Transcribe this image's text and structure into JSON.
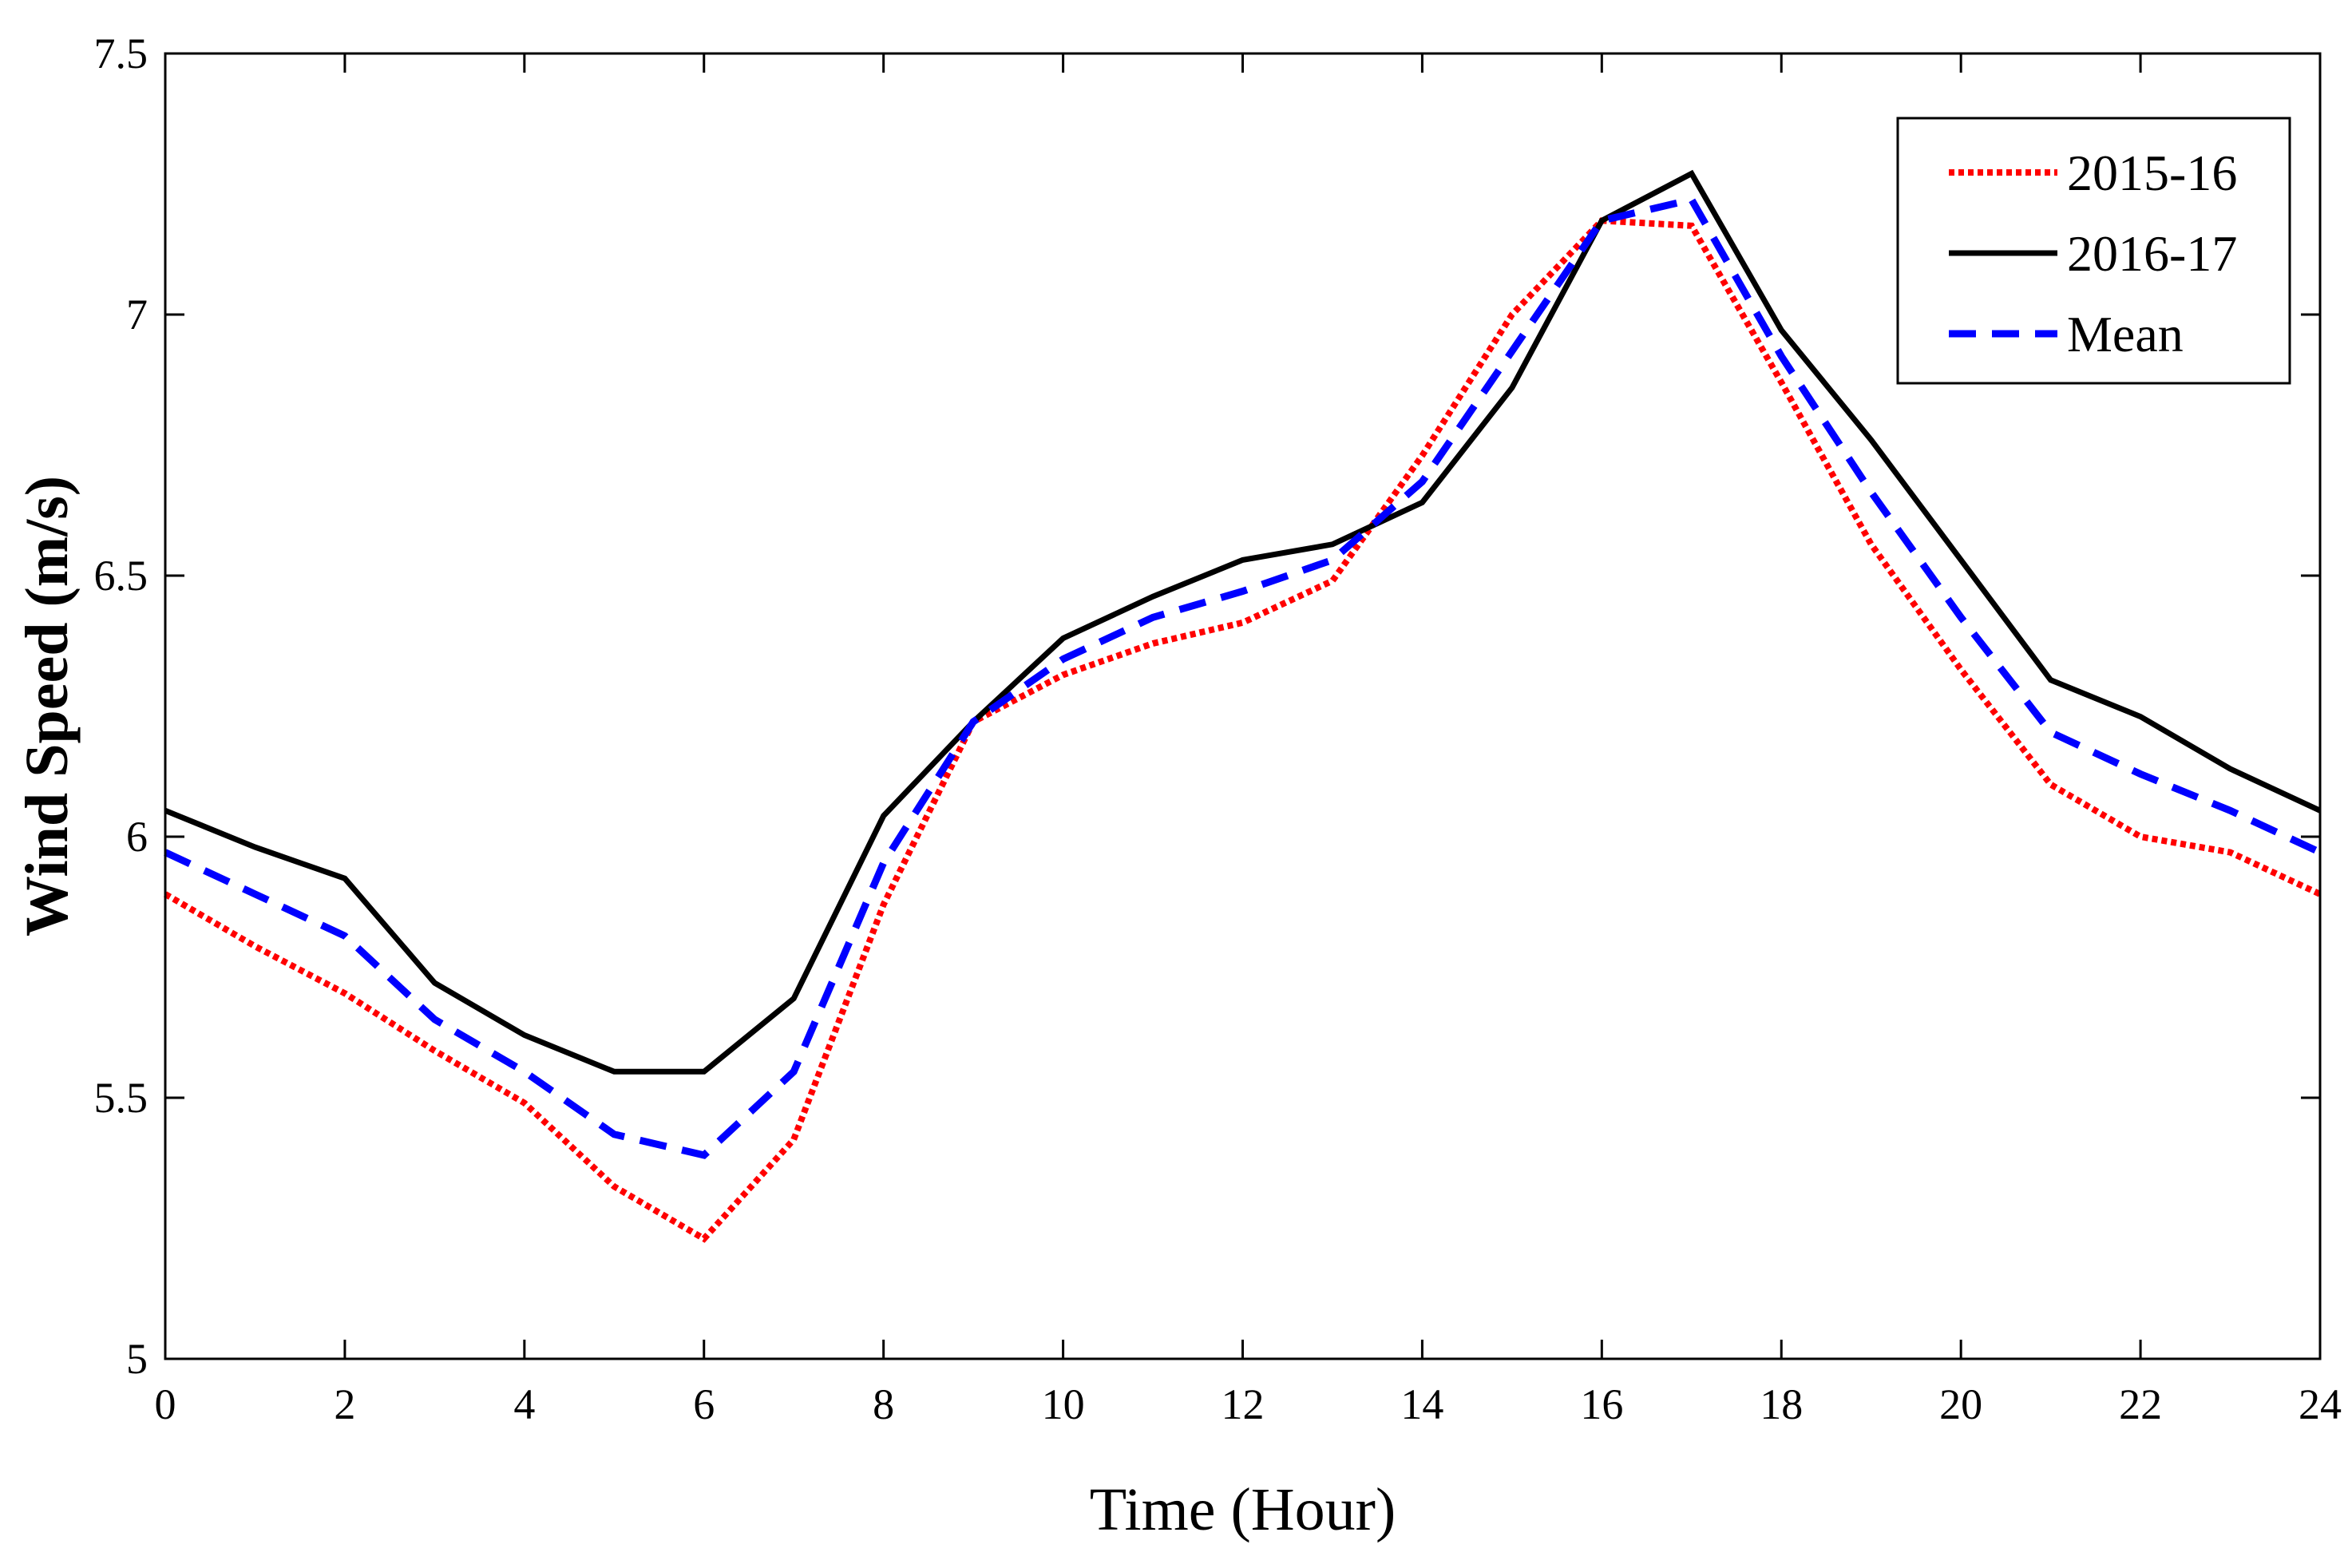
{
  "chart_data": {
    "type": "line",
    "title": "",
    "xlabel": "Time (Hour)",
    "ylabel": "Wind Speed (m/s)",
    "xlim": [
      0,
      24
    ],
    "ylim": [
      5,
      7.5
    ],
    "xticks": [
      "0",
      "2",
      "4",
      "6",
      "8",
      "10",
      "12",
      "14",
      "16",
      "18",
      "20",
      "22",
      "24"
    ],
    "yticks": [
      "5",
      "5.5",
      "6",
      "6.5",
      "7",
      "7.5"
    ],
    "x": [
      0,
      1,
      2,
      3,
      4,
      5,
      6,
      7,
      8,
      9,
      10,
      11,
      12,
      13,
      14,
      15,
      16,
      17,
      18,
      19,
      20,
      21,
      22,
      23,
      24
    ],
    "legend_position": "top-right",
    "grid": false,
    "series": [
      {
        "name": "2015-16",
        "color": "#ff0000",
        "style": "dotted",
        "values": [
          5.89,
          5.79,
          5.7,
          5.59,
          5.49,
          5.33,
          5.23,
          5.42,
          5.87,
          6.22,
          6.31,
          6.37,
          6.41,
          6.49,
          6.73,
          7.0,
          7.18,
          7.17,
          6.87,
          6.56,
          6.32,
          6.1,
          6.0,
          5.97,
          5.89
        ]
      },
      {
        "name": "2016-17",
        "color": "#000000",
        "style": "solid",
        "values": [
          6.05,
          5.98,
          5.92,
          5.72,
          5.62,
          5.55,
          5.55,
          5.69,
          6.04,
          6.22,
          6.38,
          6.46,
          6.53,
          6.56,
          6.64,
          6.86,
          7.18,
          7.27,
          6.97,
          6.76,
          6.53,
          6.3,
          6.23,
          6.13,
          6.05
        ]
      },
      {
        "name": "Mean",
        "color": "#0000ff",
        "style": "dashed",
        "values": [
          5.97,
          5.89,
          5.81,
          5.65,
          5.55,
          5.43,
          5.39,
          5.55,
          5.95,
          6.22,
          6.34,
          6.42,
          6.47,
          6.53,
          6.68,
          6.93,
          7.18,
          7.22,
          6.92,
          6.66,
          6.42,
          6.2,
          6.12,
          6.05,
          5.97
        ]
      }
    ]
  }
}
